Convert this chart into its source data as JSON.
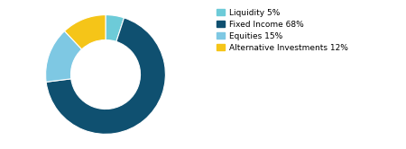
{
  "labels": [
    "Liquidity 5%",
    "Fixed Income 68%",
    "Equities 15%",
    "Alternative Investments 12%"
  ],
  "values": [
    5,
    68,
    15,
    12
  ],
  "colors": [
    "#6dcbd8",
    "#0f5070",
    "#7ec8e3",
    "#f5c518"
  ],
  "legend_labels": [
    "Liquidity 5%",
    "Fixed Income 68%",
    "Equities 15%",
    "Alternative Investments 12%"
  ],
  "background_color": "#ffffff",
  "donut_width": 0.42,
  "start_angle": 90,
  "figsize": [
    4.5,
    1.66
  ],
  "dpi": 100
}
